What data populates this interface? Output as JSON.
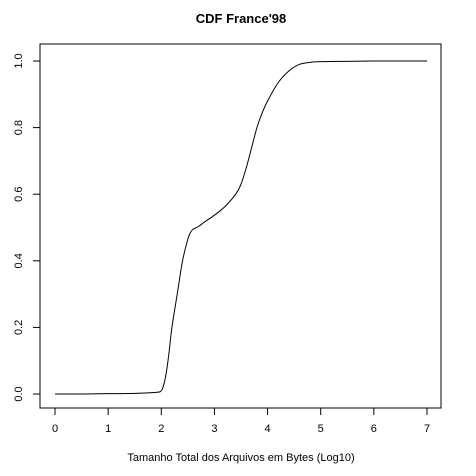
{
  "chart_data": {
    "type": "line",
    "title": "CDF France'98",
    "xlabel": "Tamanho Total dos Arquivos em Bytes (Log10)",
    "ylabel": "",
    "xlim": [
      0,
      7
    ],
    "ylim": [
      0,
      1
    ],
    "xticks": [
      "0",
      "1",
      "2",
      "3",
      "4",
      "5",
      "6",
      "7"
    ],
    "yticks": [
      "0.0",
      "0.2",
      "0.4",
      "0.6",
      "0.8",
      "1.0"
    ],
    "grid": false,
    "line_color": "#000000",
    "series": [
      {
        "x": [
          0,
          0.5,
          1.0,
          1.5,
          1.9,
          2.0,
          2.05,
          2.1,
          2.15,
          2.2,
          2.3,
          2.4,
          2.5,
          2.55,
          2.6,
          2.7,
          2.8,
          3.0,
          3.2,
          3.4,
          3.5,
          3.6,
          3.7,
          3.8,
          3.9,
          4.0,
          4.2,
          4.4,
          4.6,
          4.8,
          5.0,
          5.5,
          6.0,
          6.5,
          7.0
        ],
        "y": [
          0.0,
          0.0,
          0.001,
          0.002,
          0.005,
          0.01,
          0.03,
          0.07,
          0.13,
          0.2,
          0.3,
          0.4,
          0.465,
          0.485,
          0.495,
          0.503,
          0.515,
          0.537,
          0.563,
          0.6,
          0.63,
          0.68,
          0.74,
          0.8,
          0.845,
          0.88,
          0.935,
          0.97,
          0.99,
          0.996,
          0.998,
          0.999,
          1.0,
          1.0,
          1.0
        ]
      }
    ]
  }
}
